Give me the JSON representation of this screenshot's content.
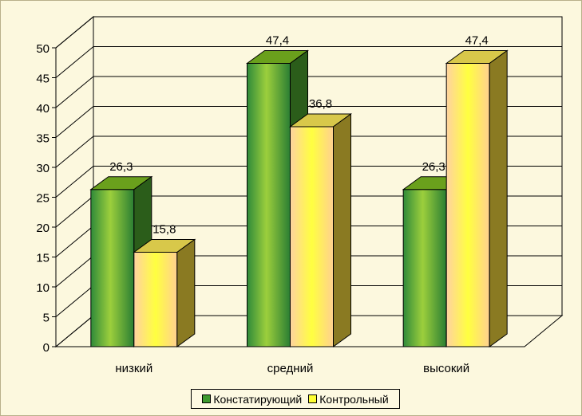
{
  "chart_data": {
    "type": "bar",
    "categories": [
      "низкий",
      "средний",
      "высокий"
    ],
    "series": [
      {
        "name": "Констатирующий",
        "values": [
          26.3,
          47.4,
          26.3
        ],
        "labels": [
          "26,3",
          "47,4",
          "26,3"
        ],
        "color": "#5aa82e"
      },
      {
        "name": "Контрольный",
        "values": [
          15.8,
          36.8,
          47.4
        ],
        "labels": [
          "15,8",
          "36,8",
          "47,4"
        ],
        "color": "#ffff33"
      }
    ],
    "ylim": [
      0,
      50
    ],
    "yticks": [
      "0",
      "5",
      "10",
      "15",
      "20",
      "25",
      "30",
      "35",
      "40",
      "45",
      "50"
    ],
    "grid": true,
    "three_d": true,
    "legend_position": "bottom"
  }
}
